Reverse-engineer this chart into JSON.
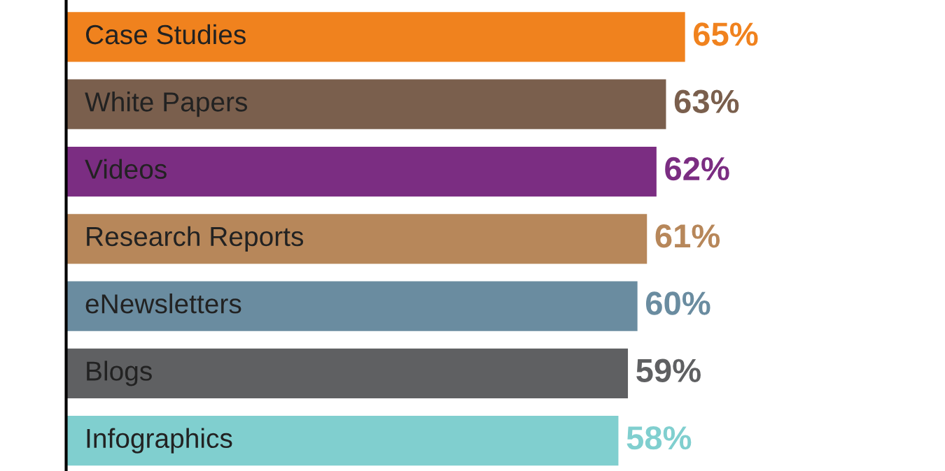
{
  "chart_data": {
    "type": "bar",
    "orientation": "horizontal",
    "categories": [
      "Case Studies",
      "White Papers",
      "Videos",
      "Research Reports",
      "eNewsletters",
      "Blogs",
      "Infographics"
    ],
    "values": [
      65,
      63,
      62,
      61,
      60,
      59,
      58
    ],
    "colors": [
      "#f0821e",
      "#7a5f4d",
      "#7b2d82",
      "#b7875a",
      "#6a8ca0",
      "#5f6062",
      "#80cfcf"
    ],
    "value_labels": [
      "65%",
      "63%",
      "62%",
      "61%",
      "60%",
      "59%",
      "58%"
    ]
  }
}
